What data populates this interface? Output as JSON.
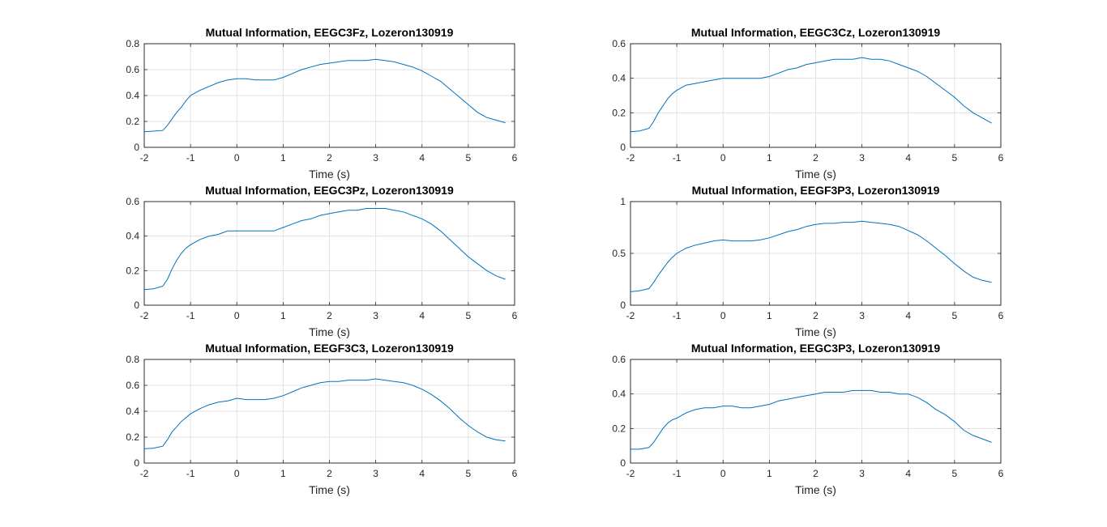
{
  "chart_data": [
    {
      "type": "line",
      "title": "Mutual Information, EEGC3Fz, Lozeron130919",
      "xlabel": "Time (s)",
      "ylabel": "",
      "xlim": [
        -2,
        6
      ],
      "ylim": [
        0,
        0.8
      ],
      "xticks": [
        -2,
        -1,
        0,
        1,
        2,
        3,
        4,
        5,
        6
      ],
      "yticks": [
        0,
        0.2,
        0.4,
        0.6,
        0.8
      ],
      "ytick_labels": [
        "0",
        "0.2",
        "0.4",
        "0.6",
        "0.8"
      ],
      "grid": true,
      "series": [
        {
          "color": "#0072bd",
          "x": [
            -2,
            -1.8,
            -1.6,
            -1.5,
            -1.4,
            -1.3,
            -1.2,
            -1.1,
            -1,
            -0.8,
            -0.6,
            -0.4,
            -0.2,
            0,
            0.2,
            0.4,
            0.6,
            0.8,
            1,
            1.2,
            1.4,
            1.6,
            1.8,
            2,
            2.2,
            2.4,
            2.6,
            2.8,
            3,
            3.2,
            3.4,
            3.6,
            3.8,
            4,
            4.2,
            4.4,
            4.6,
            4.8,
            5,
            5.2,
            5.4,
            5.6,
            5.8
          ],
          "y": [
            0.12,
            0.125,
            0.13,
            0.17,
            0.22,
            0.27,
            0.31,
            0.36,
            0.4,
            0.44,
            0.47,
            0.5,
            0.52,
            0.53,
            0.53,
            0.52,
            0.52,
            0.52,
            0.54,
            0.57,
            0.6,
            0.62,
            0.64,
            0.65,
            0.66,
            0.67,
            0.67,
            0.67,
            0.68,
            0.67,
            0.66,
            0.64,
            0.62,
            0.59,
            0.55,
            0.51,
            0.45,
            0.39,
            0.33,
            0.27,
            0.23,
            0.21,
            0.19
          ]
        }
      ]
    },
    {
      "type": "line",
      "title": "Mutual Information, EEGC3Cz, Lozeron130919",
      "xlabel": "Time (s)",
      "ylabel": "",
      "xlim": [
        -2,
        6
      ],
      "ylim": [
        0,
        0.6
      ],
      "xticks": [
        -2,
        -1,
        0,
        1,
        2,
        3,
        4,
        5,
        6
      ],
      "yticks": [
        0,
        0.2,
        0.4,
        0.6
      ],
      "ytick_labels": [
        "0",
        "0.2",
        "0.4",
        "0.6"
      ],
      "grid": true,
      "series": [
        {
          "color": "#0072bd",
          "x": [
            -2,
            -1.8,
            -1.6,
            -1.5,
            -1.4,
            -1.3,
            -1.2,
            -1.1,
            -1,
            -0.8,
            -0.6,
            -0.4,
            -0.2,
            0,
            0.2,
            0.4,
            0.6,
            0.8,
            1,
            1.2,
            1.4,
            1.6,
            1.8,
            2,
            2.2,
            2.4,
            2.6,
            2.8,
            3,
            3.2,
            3.4,
            3.6,
            3.8,
            4,
            4.2,
            4.4,
            4.6,
            4.8,
            5,
            5.2,
            5.4,
            5.6,
            5.8
          ],
          "y": [
            0.09,
            0.095,
            0.11,
            0.15,
            0.2,
            0.24,
            0.28,
            0.31,
            0.33,
            0.36,
            0.37,
            0.38,
            0.39,
            0.4,
            0.4,
            0.4,
            0.4,
            0.4,
            0.41,
            0.43,
            0.45,
            0.46,
            0.48,
            0.49,
            0.5,
            0.51,
            0.51,
            0.51,
            0.52,
            0.51,
            0.51,
            0.5,
            0.48,
            0.46,
            0.44,
            0.41,
            0.37,
            0.33,
            0.29,
            0.24,
            0.2,
            0.17,
            0.14
          ]
        }
      ]
    },
    {
      "type": "line",
      "title": "Mutual Information, EEGC3Pz, Lozeron130919",
      "xlabel": "Time (s)",
      "ylabel": "",
      "xlim": [
        -2,
        6
      ],
      "ylim": [
        0,
        0.6
      ],
      "xticks": [
        -2,
        -1,
        0,
        1,
        2,
        3,
        4,
        5,
        6
      ],
      "yticks": [
        0,
        0.2,
        0.4,
        0.6
      ],
      "ytick_labels": [
        "0",
        "0.2",
        "0.4",
        "0.6"
      ],
      "grid": true,
      "series": [
        {
          "color": "#0072bd",
          "x": [
            -2,
            -1.8,
            -1.6,
            -1.5,
            -1.4,
            -1.3,
            -1.2,
            -1.1,
            -1,
            -0.8,
            -0.6,
            -0.4,
            -0.2,
            0,
            0.2,
            0.4,
            0.6,
            0.8,
            1,
            1.2,
            1.4,
            1.6,
            1.8,
            2,
            2.2,
            2.4,
            2.6,
            2.8,
            3,
            3.2,
            3.4,
            3.6,
            3.8,
            4,
            4.2,
            4.4,
            4.6,
            4.8,
            5,
            5.2,
            5.4,
            5.6,
            5.8
          ],
          "y": [
            0.09,
            0.095,
            0.11,
            0.15,
            0.21,
            0.26,
            0.3,
            0.33,
            0.35,
            0.38,
            0.4,
            0.41,
            0.43,
            0.43,
            0.43,
            0.43,
            0.43,
            0.43,
            0.45,
            0.47,
            0.49,
            0.5,
            0.52,
            0.53,
            0.54,
            0.55,
            0.55,
            0.56,
            0.56,
            0.56,
            0.55,
            0.54,
            0.52,
            0.5,
            0.47,
            0.43,
            0.38,
            0.33,
            0.28,
            0.24,
            0.2,
            0.17,
            0.15
          ]
        }
      ]
    },
    {
      "type": "line",
      "title": "Mutual Information, EEGF3P3, Lozeron130919",
      "xlabel": "Time (s)",
      "ylabel": "",
      "xlim": [
        -2,
        6
      ],
      "ylim": [
        0,
        1
      ],
      "xticks": [
        -2,
        -1,
        0,
        1,
        2,
        3,
        4,
        5,
        6
      ],
      "yticks": [
        0,
        0.5,
        1
      ],
      "ytick_labels": [
        "0",
        "0.5",
        "1"
      ],
      "grid": true,
      "series": [
        {
          "color": "#0072bd",
          "x": [
            -2,
            -1.8,
            -1.6,
            -1.5,
            -1.4,
            -1.3,
            -1.2,
            -1.1,
            -1,
            -0.8,
            -0.6,
            -0.4,
            -0.2,
            0,
            0.2,
            0.4,
            0.6,
            0.8,
            1,
            1.2,
            1.4,
            1.6,
            1.8,
            2,
            2.2,
            2.4,
            2.6,
            2.8,
            3,
            3.2,
            3.4,
            3.6,
            3.8,
            4,
            4.2,
            4.4,
            4.6,
            4.8,
            5,
            5.2,
            5.4,
            5.6,
            5.8
          ],
          "y": [
            0.13,
            0.14,
            0.16,
            0.22,
            0.29,
            0.35,
            0.41,
            0.46,
            0.5,
            0.55,
            0.58,
            0.6,
            0.62,
            0.63,
            0.62,
            0.62,
            0.62,
            0.63,
            0.65,
            0.68,
            0.71,
            0.73,
            0.76,
            0.78,
            0.79,
            0.79,
            0.8,
            0.8,
            0.81,
            0.8,
            0.79,
            0.78,
            0.76,
            0.72,
            0.68,
            0.62,
            0.55,
            0.48,
            0.4,
            0.33,
            0.27,
            0.24,
            0.22
          ]
        }
      ]
    },
    {
      "type": "line",
      "title": "Mutual Information, EEGF3C3, Lozeron130919",
      "xlabel": "Time (s)",
      "ylabel": "",
      "xlim": [
        -2,
        6
      ],
      "ylim": [
        0,
        0.8
      ],
      "xticks": [
        -2,
        -1,
        0,
        1,
        2,
        3,
        4,
        5,
        6
      ],
      "yticks": [
        0,
        0.2,
        0.4,
        0.6,
        0.8
      ],
      "ytick_labels": [
        "0",
        "0.2",
        "0.4",
        "0.6",
        "0.8"
      ],
      "grid": true,
      "series": [
        {
          "color": "#0072bd",
          "x": [
            -2,
            -1.8,
            -1.6,
            -1.5,
            -1.4,
            -1.3,
            -1.2,
            -1.1,
            -1,
            -0.8,
            -0.6,
            -0.4,
            -0.2,
            0,
            0.2,
            0.4,
            0.6,
            0.8,
            1,
            1.2,
            1.4,
            1.6,
            1.8,
            2,
            2.2,
            2.4,
            2.6,
            2.8,
            3,
            3.2,
            3.4,
            3.6,
            3.8,
            4,
            4.2,
            4.4,
            4.6,
            4.8,
            5,
            5.2,
            5.4,
            5.6,
            5.8
          ],
          "y": [
            0.11,
            0.115,
            0.13,
            0.18,
            0.24,
            0.28,
            0.32,
            0.35,
            0.38,
            0.42,
            0.45,
            0.47,
            0.48,
            0.5,
            0.49,
            0.49,
            0.49,
            0.5,
            0.52,
            0.55,
            0.58,
            0.6,
            0.62,
            0.63,
            0.63,
            0.64,
            0.64,
            0.64,
            0.65,
            0.64,
            0.63,
            0.62,
            0.6,
            0.57,
            0.53,
            0.48,
            0.42,
            0.35,
            0.29,
            0.24,
            0.2,
            0.18,
            0.17
          ]
        }
      ]
    },
    {
      "type": "line",
      "title": "Mutual Information, EEGC3P3, Lozeron130919",
      "xlabel": "Time (s)",
      "ylabel": "",
      "xlim": [
        -2,
        6
      ],
      "ylim": [
        0,
        0.6
      ],
      "xticks": [
        -2,
        -1,
        0,
        1,
        2,
        3,
        4,
        5,
        6
      ],
      "yticks": [
        0,
        0.2,
        0.4,
        0.6
      ],
      "ytick_labels": [
        "0",
        "0.2",
        "0.4",
        "0.6"
      ],
      "grid": true,
      "series": [
        {
          "color": "#0072bd",
          "x": [
            -2,
            -1.8,
            -1.6,
            -1.5,
            -1.4,
            -1.3,
            -1.2,
            -1.1,
            -1,
            -0.8,
            -0.6,
            -0.4,
            -0.2,
            0,
            0.2,
            0.4,
            0.6,
            0.8,
            1,
            1.2,
            1.4,
            1.6,
            1.8,
            2,
            2.2,
            2.4,
            2.6,
            2.8,
            3,
            3.2,
            3.4,
            3.6,
            3.8,
            4,
            4.2,
            4.4,
            4.6,
            4.8,
            5,
            5.2,
            5.4,
            5.6,
            5.8
          ],
          "y": [
            0.08,
            0.08,
            0.09,
            0.12,
            0.16,
            0.2,
            0.23,
            0.25,
            0.26,
            0.29,
            0.31,
            0.32,
            0.32,
            0.33,
            0.33,
            0.32,
            0.32,
            0.33,
            0.34,
            0.36,
            0.37,
            0.38,
            0.39,
            0.4,
            0.41,
            0.41,
            0.41,
            0.42,
            0.42,
            0.42,
            0.41,
            0.41,
            0.4,
            0.4,
            0.38,
            0.35,
            0.31,
            0.28,
            0.24,
            0.19,
            0.16,
            0.14,
            0.12
          ]
        }
      ]
    }
  ]
}
